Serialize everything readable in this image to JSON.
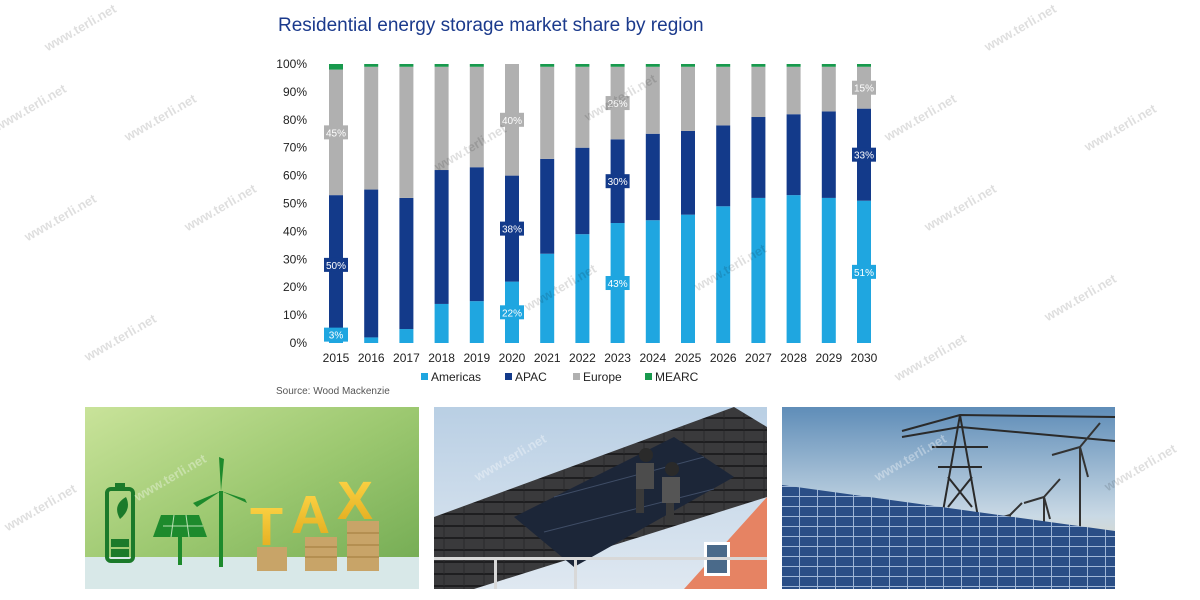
{
  "chart_data": {
    "type": "bar",
    "stacked": true,
    "title": "Residential energy storage market share by region",
    "categories": [
      "2015",
      "2016",
      "2017",
      "2018",
      "2019",
      "2020",
      "2021",
      "2022",
      "2023",
      "2024",
      "2025",
      "2026",
      "2027",
      "2028",
      "2029",
      "2030"
    ],
    "series": [
      {
        "name": "Americas",
        "color": "#1fa6e0",
        "values": [
          3,
          2,
          5,
          14,
          15,
          22,
          32,
          39,
          43,
          44,
          46,
          49,
          52,
          53,
          52,
          51
        ]
      },
      {
        "name": "APAC",
        "color": "#133a8a",
        "values": [
          50,
          53,
          47,
          48,
          48,
          38,
          34,
          31,
          30,
          31,
          30,
          29,
          29,
          29,
          31,
          33
        ]
      },
      {
        "name": "Europe",
        "color": "#b0b0b0",
        "values": [
          45,
          44,
          47,
          37,
          36,
          40,
          33,
          29,
          26,
          24,
          23,
          21,
          18,
          17,
          16,
          15
        ]
      },
      {
        "name": "MEARC",
        "color": "#18994d",
        "values": [
          2,
          1,
          1,
          1,
          1,
          0,
          1,
          1,
          1,
          1,
          1,
          1,
          1,
          1,
          1,
          1
        ]
      }
    ],
    "data_labels": [
      {
        "series": "Americas",
        "category": "2015",
        "text": "3%"
      },
      {
        "series": "APAC",
        "category": "2015",
        "text": "50%"
      },
      {
        "series": "Europe",
        "category": "2015",
        "text": "45%"
      },
      {
        "series": "Americas",
        "category": "2020",
        "text": "22%"
      },
      {
        "series": "APAC",
        "category": "2020",
        "text": "38%"
      },
      {
        "series": "Europe",
        "category": "2020",
        "text": "40%"
      },
      {
        "series": "Americas",
        "category": "2023",
        "text": "43%"
      },
      {
        "series": "APAC",
        "category": "2023",
        "text": "30%"
      },
      {
        "series": "Europe",
        "category": "2023",
        "text": "26%"
      },
      {
        "series": "Americas",
        "category": "2030",
        "text": "51%"
      },
      {
        "series": "APAC",
        "category": "2030",
        "text": "33%"
      },
      {
        "series": "Europe",
        "category": "2030",
        "text": "15%"
      }
    ],
    "yticks": [
      "0%",
      "10%",
      "20%",
      "30%",
      "40%",
      "50%",
      "60%",
      "70%",
      "80%",
      "90%",
      "100%"
    ],
    "ylim": [
      0,
      100
    ],
    "xlabel": "",
    "ylabel": "",
    "grid": false,
    "legend": "bottom"
  },
  "source": "Source: Wood Mackenzie",
  "watermark": "www.terli.net",
  "photos": {
    "tax_letters": [
      "T",
      "A",
      "X"
    ]
  }
}
